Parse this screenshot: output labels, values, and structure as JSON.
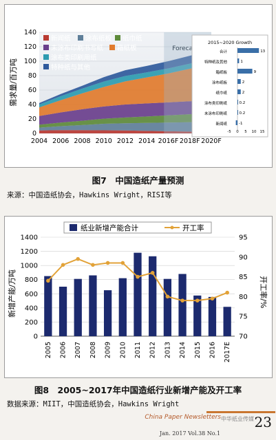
{
  "figure1": {
    "caption": "图7　中国造纸产量预测",
    "source": "来源：中国造纸协会，Hawkins Wright，RISI等",
    "ylabel": "需求量/百万吨",
    "forecast_label": "Forecast",
    "legend": [
      "新闻纸",
      "涂布纸板",
      "纸巾纸",
      "未涂布印刷书写纸",
      "箱纸板",
      "涂布类印刷用纸",
      "特种纸与其他"
    ],
    "inset": {
      "title": "2015~2020 Growth",
      "categories": [
        "合计",
        "特种纸及其他",
        "箱纸板",
        "涂布纸板",
        "纸巾纸",
        "涂布类印刷纸",
        "未涂布印刷纸",
        "新闻纸"
      ],
      "values": [
        13,
        1,
        9,
        2,
        2,
        0.2,
        0.2,
        -1
      ],
      "axis_ticks": [
        "-5",
        "0",
        "5",
        "10",
        "15"
      ],
      "xlim": [
        -5,
        15
      ]
    },
    "chart_data": {
      "type": "area",
      "x": [
        "2004",
        "2006",
        "2008",
        "2010",
        "2012",
        "2014",
        "2016F",
        "2018F",
        "2020F"
      ],
      "ylim": [
        0,
        140
      ],
      "y_ticks": [
        "0",
        "20",
        "40",
        "60",
        "80",
        "100",
        "120",
        "140"
      ],
      "series": [
        {
          "name": "新闻纸",
          "values": [
            4,
            4.5,
            4.5,
            4.3,
            4,
            3.5,
            3,
            2.5,
            2
          ]
        },
        {
          "name": "涂布纸板",
          "values": [
            4,
            5.5,
            7,
            9,
            10,
            11,
            12,
            13,
            14
          ]
        },
        {
          "name": "纸巾纸",
          "values": [
            4,
            5,
            6,
            7,
            8,
            9,
            10,
            11,
            12
          ]
        },
        {
          "name": "未涂布印刷书写纸",
          "values": [
            12,
            14,
            16,
            17,
            18,
            18,
            18,
            18,
            18
          ]
        },
        {
          "name": "箱纸板",
          "values": [
            12,
            17,
            22,
            27,
            32,
            36,
            40,
            45,
            50
          ]
        },
        {
          "name": "涂布类印刷用纸",
          "values": [
            4,
            5.5,
            6.5,
            7.5,
            7.5,
            7,
            7,
            7,
            7
          ]
        },
        {
          "name": "特种纸与其他",
          "values": [
            2,
            3,
            4,
            6,
            8,
            9,
            10,
            11,
            12
          ]
        }
      ]
    }
  },
  "figure2": {
    "caption": "图8　2005~2017年中国造纸行业新增产能及开工率",
    "source": "数据来源：MIIT，中国造纸协会，Hawkins Wright",
    "ylabel_left": "新增产能/万吨",
    "ylabel_right": "开工率/%",
    "legend_bar": "纸业新增产能合计",
    "legend_line": "开工率",
    "chart_data": {
      "type": "bar",
      "categories": [
        "2005",
        "2006",
        "2007",
        "2008",
        "2009",
        "2010",
        "2011",
        "2012",
        "2013",
        "2014",
        "2015",
        "2016",
        "2017E"
      ],
      "ylim": [
        0,
        1400
      ],
      "y2lim": [
        70,
        95
      ],
      "y_ticks": [
        "0",
        "200",
        "400",
        "600",
        "800",
        "1000",
        "1200",
        "1400"
      ],
      "y2_ticks": [
        "70",
        "75",
        "80",
        "85",
        "90",
        "95"
      ],
      "series": [
        {
          "name": "纸业新增产能合计",
          "values": [
            850,
            700,
            810,
            860,
            650,
            820,
            1180,
            1130,
            810,
            880,
            575,
            555,
            415
          ]
        },
        {
          "name": "开工率",
          "values": [
            84,
            88,
            89.5,
            88,
            88.5,
            88.5,
            85,
            86,
            80,
            79,
            79,
            79.5,
            81
          ]
        }
      ]
    }
  },
  "footer": {
    "logo": "China Paper Newsletters",
    "watermark": "中华纸业传媒",
    "journal": "Jan. 2017 Vol.38 No.1",
    "page_number": "23"
  },
  "colors": {
    "bars": "#1c2a6e",
    "rate_line": "#e2a238",
    "inset_bars": "#3a6fa8"
  }
}
